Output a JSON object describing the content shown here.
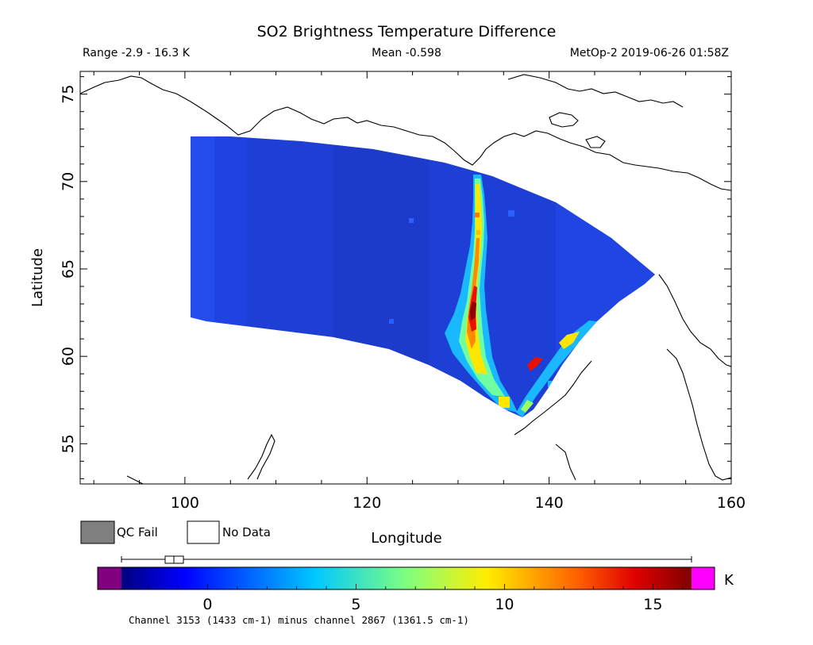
{
  "title": "SO2 Brightness Temperature Difference",
  "subtitle": {
    "range": "Range -2.9 - 16.3 K",
    "mean": "Mean -0.598",
    "platform": "MetOp-2 2019-06-26 01:58Z"
  },
  "map": {
    "xlabel": "Longitude",
    "ylabel": "Latitude",
    "lon_range": [
      88.5,
      160
    ],
    "lat_range": [
      52.7,
      76.3
    ],
    "x_ticks": [
      {
        "v": 100,
        "label": "100"
      },
      {
        "v": 120,
        "label": "120"
      },
      {
        "v": 140,
        "label": "140"
      },
      {
        "v": 160,
        "label": "160"
      }
    ],
    "y_ticks": [
      {
        "v": 55,
        "label": "55"
      },
      {
        "v": 60,
        "label": "60"
      },
      {
        "v": 65,
        "label": "65"
      },
      {
        "v": 70,
        "label": "70"
      },
      {
        "v": 75,
        "label": "75"
      }
    ]
  },
  "legend": {
    "qc_fail": {
      "label": "QC Fail",
      "color": "#808080"
    },
    "no_data": {
      "label": "No Data",
      "color": "#ffffff"
    }
  },
  "colorbar": {
    "unit": "K",
    "min": -2.9,
    "max": 16.3,
    "below_color": "#800080",
    "above_color": "#ff00ff",
    "ticks": [
      {
        "v": 0,
        "label": "0"
      },
      {
        "v": 5,
        "label": "5"
      },
      {
        "v": 10,
        "label": "10"
      },
      {
        "v": 15,
        "label": "15"
      }
    ],
    "note": "Channel 3153 (1433 cm-1) minus channel 2867 (1361.5 cm-1)"
  },
  "colors": {
    "swath_background": "#1e3fd6",
    "plume_high": "#8b0000"
  }
}
